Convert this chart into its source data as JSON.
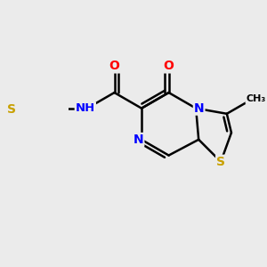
{
  "background_color": "#ebebeb",
  "bond_color": "#000000",
  "bond_width": 1.8,
  "atom_colors": {
    "S": "#c8a000",
    "N": "#0000ff",
    "O": "#ff0000",
    "C": "#000000",
    "H": "#808080"
  },
  "font_size": 10,
  "figsize": [
    3.0,
    3.0
  ],
  "dpi": 100
}
